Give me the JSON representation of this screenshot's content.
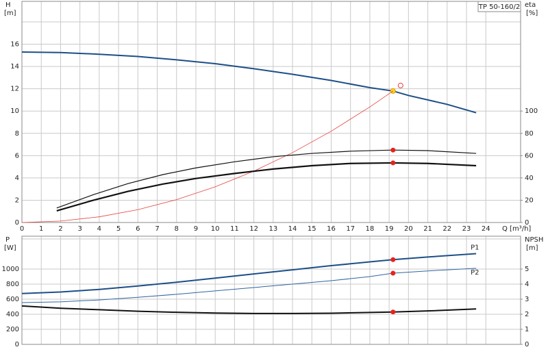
{
  "chart_data": [
    {
      "type": "line",
      "title": "TP 50-160/2",
      "y_label": "H",
      "y_unit": "[m]",
      "y2_label": "eta",
      "y2_unit": "[%]",
      "x_label": "Q [m³/h]",
      "xlim": [
        0,
        25.8
      ],
      "xticks": [
        0,
        1,
        2,
        3,
        4,
        5,
        6,
        7,
        8,
        9,
        10,
        11,
        12,
        13,
        14,
        15,
        16,
        17,
        18,
        19,
        20,
        21,
        22,
        23,
        24
      ],
      "ylim": [
        0,
        18
      ],
      "yticks": [
        0,
        2,
        4,
        6,
        8,
        10,
        12,
        14,
        16
      ],
      "y2lim": [
        0,
        180
      ],
      "y2ticks": [
        0,
        20,
        40,
        60,
        80,
        100
      ],
      "grid": true,
      "x_tick_labels": true,
      "series": [
        {
          "color": "#1c4e87",
          "line_width": 2,
          "axis": "y",
          "x": [
            0,
            2,
            4,
            6,
            8,
            10,
            12,
            14,
            16,
            18,
            19.2,
            20,
            22,
            23.5
          ],
          "values": [
            15.3,
            15.25,
            15.1,
            14.9,
            14.6,
            14.25,
            13.8,
            13.3,
            12.75,
            12.1,
            11.8,
            11.4,
            10.6,
            9.85
          ],
          "marker_index": 10,
          "marker_color": "#ffd21f"
        },
        {
          "color": "#e8413a",
          "line_width": 0.8,
          "axis": "y",
          "x": [
            0,
            2,
            4,
            6,
            8,
            10,
            12,
            14,
            16,
            18,
            19.2
          ],
          "values": [
            0,
            0.13,
            0.51,
            1.15,
            2.05,
            3.2,
            4.61,
            6.27,
            8.19,
            10.37,
            11.8
          ]
        },
        {
          "color": "#111111",
          "line_width": 1.2,
          "axis": "y2",
          "x": [
            1.8,
            3.7,
            5.5,
            7.3,
            9,
            11,
            13,
            15,
            17,
            19.2,
            21,
            23.5
          ],
          "values": [
            13,
            25,
            35,
            43,
            49,
            54.5,
            59,
            62,
            64,
            65,
            64.5,
            62
          ],
          "marker_index": 9,
          "marker_color": "#e8221a"
        },
        {
          "color": "#111111",
          "line_width": 2.2,
          "axis": "y2",
          "x": [
            1.8,
            3.7,
            5.5,
            7.3,
            9,
            11,
            13,
            15,
            17,
            19.2,
            21,
            23.5
          ],
          "values": [
            10.5,
            20,
            28,
            34.5,
            39.5,
            44,
            48,
            51,
            53,
            53.5,
            53,
            51
          ],
          "marker_index": 9,
          "marker_color": "#e8221a"
        }
      ]
    },
    {
      "type": "line",
      "y_label": "P",
      "y_unit": "[W]",
      "y2_label": "NPSH",
      "y2_unit": "[m]",
      "xlim": [
        0,
        25.8
      ],
      "xticks": [
        0,
        1,
        2,
        3,
        4,
        5,
        6,
        7,
        8,
        9,
        10,
        11,
        12,
        13,
        14,
        15,
        16,
        17,
        18,
        19,
        20,
        21,
        22,
        23,
        24
      ],
      "ylim": [
        0,
        1400
      ],
      "yticks": [
        0,
        200,
        400,
        600,
        800,
        1000
      ],
      "y2lim": [
        0,
        7
      ],
      "y2ticks": [
        0,
        1,
        2,
        3,
        4,
        5
      ],
      "grid": true,
      "x_tick_labels": false,
      "series": [
        {
          "name": "P1",
          "color": "#1c4e87",
          "line_width": 2,
          "axis": "y",
          "x": [
            0,
            2,
            4,
            6,
            8,
            10,
            12,
            14,
            16,
            18,
            19.2,
            21,
            23.5
          ],
          "values": [
            675,
            695,
            730,
            775,
            825,
            880,
            935,
            990,
            1045,
            1095,
            1125,
            1160,
            1205
          ],
          "marker_index": 10,
          "marker_color": "#e8221a"
        },
        {
          "name": "P2",
          "color": "#2f64a0",
          "line_width": 1,
          "axis": "y",
          "x": [
            0,
            2,
            4,
            6,
            8,
            10,
            12,
            14,
            16,
            18,
            19.2,
            21,
            23.5
          ],
          "values": [
            555,
            565,
            590,
            625,
            665,
            710,
            755,
            800,
            845,
            900,
            945,
            975,
            1010
          ],
          "marker_index": 10,
          "marker_color": "#e8221a"
        },
        {
          "color": "#111111",
          "line_width": 2,
          "axis": "y2",
          "x": [
            0,
            2,
            4,
            6,
            8,
            10,
            12,
            14,
            16,
            18,
            19.2,
            21,
            23.5
          ],
          "values": [
            2.55,
            2.4,
            2.3,
            2.2,
            2.13,
            2.08,
            2.05,
            2.05,
            2.07,
            2.12,
            2.15,
            2.22,
            2.35
          ],
          "marker_index": 10,
          "marker_color": "#e8221a"
        }
      ]
    }
  ]
}
